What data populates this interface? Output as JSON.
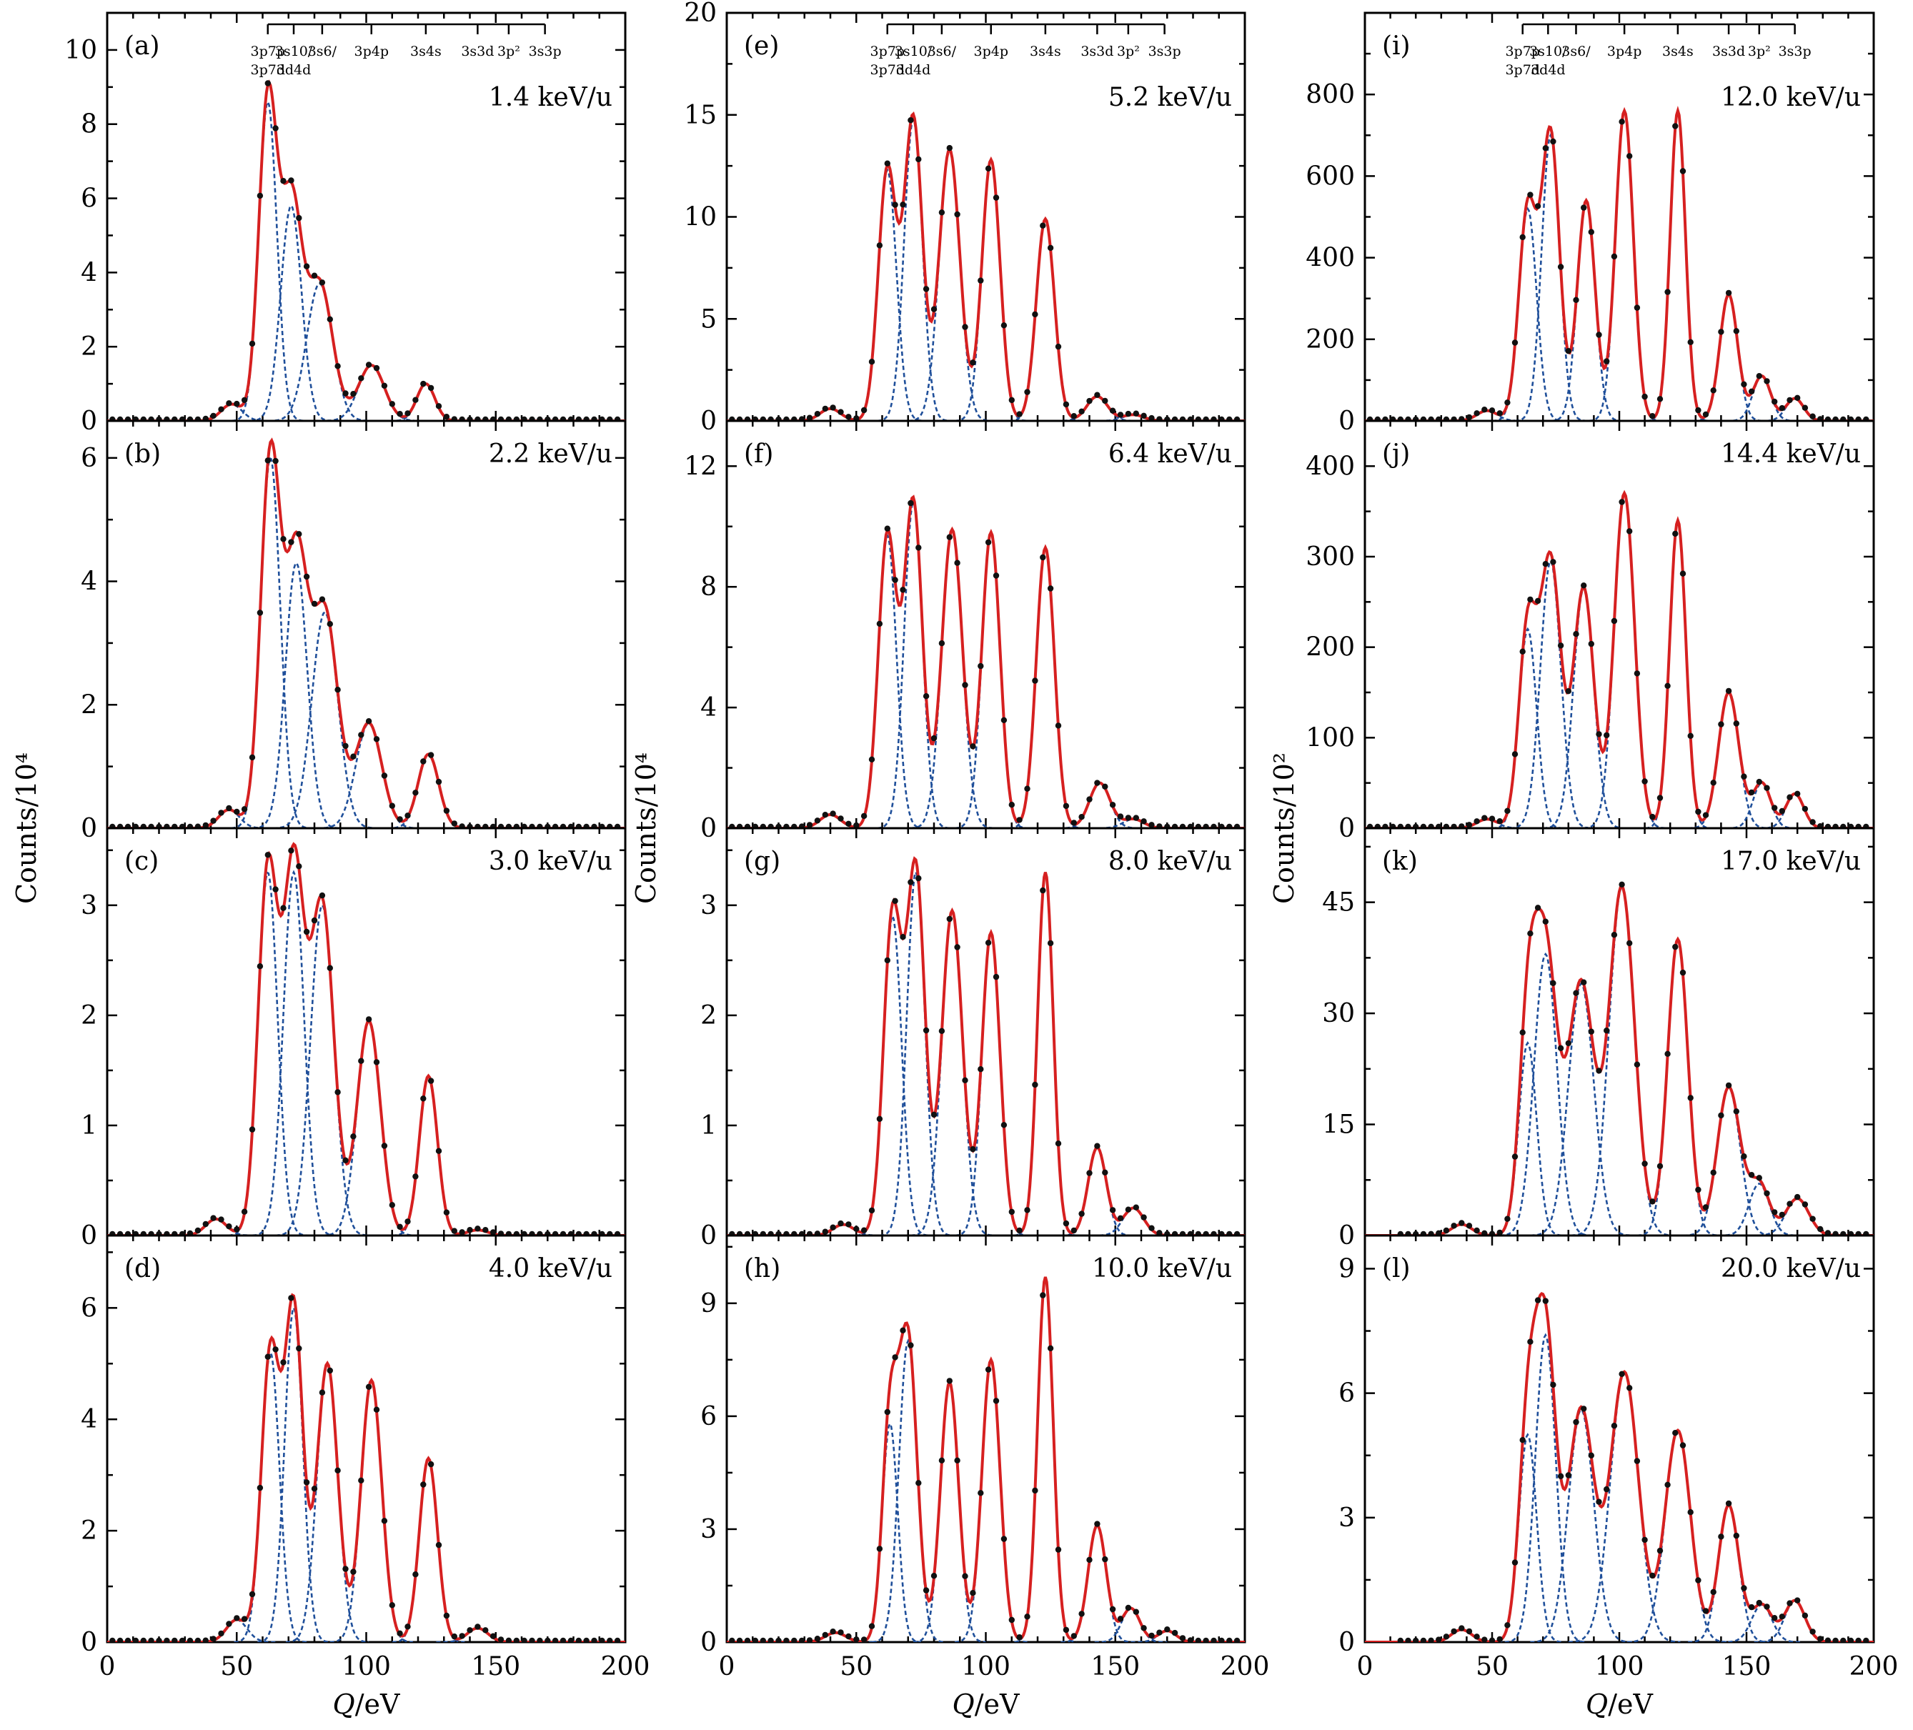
{
  "figure": {
    "x_axis_title": "Q/eV",
    "x_axis_title_parts": {
      "symbol": "Q",
      "unit": "/eV"
    },
    "y_axis_titles": [
      "Counts/10⁴",
      "Counts/10⁴",
      "Counts/10²"
    ],
    "markers": {
      "top": [
        "3p7p",
        "3s10/",
        "3s6/",
        "3p4p",
        "3s4s",
        "3s3d",
        "3p²",
        "3s3p"
      ],
      "bottom": [
        "3p7d",
        "3d4d"
      ],
      "q": [
        62,
        72,
        83,
        102,
        123,
        143,
        155,
        169
      ]
    }
  },
  "chart_data": [
    {
      "type": "line",
      "panel": "(a)",
      "annotation": "1.4 keV/u",
      "column": 0,
      "row": 0,
      "xlim": [
        0,
        200
      ],
      "ylim": [
        0,
        11
      ],
      "yticks": [
        0,
        2,
        4,
        6,
        8,
        10
      ],
      "peaks": {
        "q": [
          48,
          62,
          71,
          82,
          102,
          123
        ],
        "a": [
          0.45,
          8.6,
          5.8,
          3.7,
          1.5,
          1.0
        ],
        "w": [
          4,
          3.5,
          4,
          5,
          5,
          3.5
        ]
      }
    },
    {
      "type": "line",
      "panel": "(b)",
      "annotation": "2.2 keV/u",
      "column": 0,
      "row": 1,
      "xlim": [
        0,
        200
      ],
      "ylim": [
        0,
        6.6
      ],
      "yticks": [
        0,
        2,
        4,
        6
      ],
      "peaks": {
        "q": [
          47,
          63,
          73,
          84,
          101,
          124
        ],
        "a": [
          0.3,
          6.0,
          4.3,
          3.5,
          1.7,
          1.2
        ],
        "w": [
          4,
          3.8,
          4.2,
          5,
          5,
          4
        ]
      }
    },
    {
      "type": "line",
      "panel": "(c)",
      "annotation": "3.0 keV/u",
      "column": 0,
      "row": 2,
      "xlim": [
        0,
        200
      ],
      "ylim": [
        0,
        3.7
      ],
      "yticks": [
        0,
        1,
        2,
        3
      ],
      "peaks": {
        "q": [
          42,
          62,
          72,
          83,
          101,
          124,
          143
        ],
        "a": [
          0.15,
          3.3,
          3.3,
          3.0,
          1.95,
          1.45,
          0.05
        ],
        "w": [
          4,
          3.8,
          4,
          4.5,
          4.5,
          3.5,
          4
        ]
      }
    },
    {
      "type": "line",
      "panel": "(d)",
      "annotation": "4.0 keV/u",
      "column": 0,
      "row": 3,
      "xlim": [
        0,
        200
      ],
      "ylim": [
        0,
        7.3
      ],
      "yticks": [
        0,
        2,
        4,
        6
      ],
      "peaks": {
        "q": [
          50,
          63,
          72,
          85,
          102,
          124,
          143
        ],
        "a": [
          0.4,
          5.2,
          6.0,
          5.0,
          4.7,
          3.3,
          0.25
        ],
        "w": [
          4,
          3.5,
          3.5,
          4,
          4,
          3.5,
          4
        ]
      }
    },
    {
      "type": "line",
      "panel": "(e)",
      "annotation": "5.2 keV/u",
      "column": 1,
      "row": 0,
      "xlim": [
        0,
        200
      ],
      "ylim": [
        0,
        20
      ],
      "yticks": [
        0,
        5,
        10,
        15,
        20
      ],
      "peaks": {
        "q": [
          40,
          62,
          72,
          86,
          102,
          123,
          143,
          157
        ],
        "a": [
          0.6,
          12.3,
          14.8,
          13.3,
          12.8,
          9.9,
          1.2,
          0.3
        ],
        "w": [
          4,
          3.5,
          3.5,
          4,
          3.5,
          3.5,
          4,
          4
        ]
      }
    },
    {
      "type": "line",
      "panel": "(f)",
      "annotation": "6.4 keV/u",
      "column": 1,
      "row": 1,
      "xlim": [
        0,
        200
      ],
      "ylim": [
        0,
        13.5
      ],
      "yticks": [
        0,
        4,
        8,
        12
      ],
      "peaks": {
        "q": [
          40,
          62,
          72,
          87,
          102,
          123,
          144,
          157
        ],
        "a": [
          0.45,
          9.7,
          10.8,
          9.9,
          9.8,
          9.3,
          1.5,
          0.3
        ],
        "w": [
          4,
          3.5,
          3.5,
          4,
          3.5,
          3.5,
          4,
          4
        ]
      }
    },
    {
      "type": "line",
      "panel": "(g)",
      "annotation": "8.0 keV/u",
      "column": 1,
      "row": 2,
      "xlim": [
        0,
        200
      ],
      "ylim": [
        0,
        3.7
      ],
      "yticks": [
        0,
        1,
        2,
        3
      ],
      "peaks": {
        "q": [
          45,
          64,
          73,
          87,
          102,
          123,
          143,
          157
        ],
        "a": [
          0.1,
          2.9,
          3.3,
          2.95,
          2.75,
          3.3,
          0.8,
          0.25
        ],
        "w": [
          4,
          3.5,
          3.5,
          4,
          3.5,
          3,
          3.5,
          4
        ]
      }
    },
    {
      "type": "line",
      "panel": "(h)",
      "annotation": "10.0 keV/u",
      "column": 1,
      "row": 3,
      "xlim": [
        0,
        200
      ],
      "ylim": [
        0,
        10.8
      ],
      "yticks": [
        0,
        3,
        6,
        9
      ],
      "peaks": {
        "q": [
          42,
          63,
          70,
          86,
          102,
          123,
          143,
          156,
          170
        ],
        "a": [
          0.25,
          5.8,
          8.0,
          6.9,
          7.5,
          9.7,
          3.1,
          0.9,
          0.3
        ],
        "w": [
          4,
          3,
          3.5,
          3.5,
          3.5,
          3,
          3.5,
          3.5,
          3.5
        ]
      }
    },
    {
      "type": "line",
      "panel": "(i)",
      "annotation": "12.0 keV/u",
      "column": 2,
      "row": 0,
      "xlim": [
        0,
        200
      ],
      "ylim": [
        0,
        1000
      ],
      "yticks": [
        0,
        200,
        400,
        600,
        800
      ],
      "peaks": {
        "q": [
          48,
          64,
          73,
          87,
          102,
          123,
          143,
          156,
          169
        ],
        "a": [
          25,
          520,
          700,
          540,
          760,
          760,
          310,
          110,
          55
        ],
        "w": [
          4,
          3.5,
          3.5,
          3.5,
          3.5,
          3,
          3.5,
          3.5,
          3.5
        ]
      }
    },
    {
      "type": "line",
      "panel": "(j)",
      "annotation": "14.4 keV/u",
      "column": 2,
      "row": 1,
      "xlim": [
        0,
        200
      ],
      "ylim": [
        0,
        450
      ],
      "yticks": [
        0,
        100,
        200,
        300,
        400
      ],
      "peaks": {
        "q": [
          48,
          64,
          73,
          86,
          102,
          123,
          143,
          156,
          169
        ],
        "a": [
          10,
          220,
          295,
          265,
          370,
          340,
          150,
          50,
          38
        ],
        "w": [
          4,
          3.5,
          4,
          4,
          4,
          3.2,
          4,
          3.5,
          3.5
        ]
      }
    },
    {
      "type": "line",
      "panel": "(k)",
      "annotation": "17.0 keV/u",
      "column": 2,
      "row": 2,
      "xlim": [
        0,
        200
      ],
      "ylim": [
        0,
        55
      ],
      "yticks": [
        0,
        15,
        30,
        45
      ],
      "peaks": {
        "q": [
          38,
          64,
          71,
          85,
          101,
          123,
          143,
          155,
          170
        ],
        "a": [
          1.5,
          26,
          38,
          34,
          47,
          40,
          20,
          7,
          5
        ],
        "w": [
          4,
          3.5,
          4.5,
          5,
          5,
          4,
          4.5,
          4,
          4.5
        ]
      }
    },
    {
      "type": "line",
      "panel": "(l)",
      "annotation": "20.0 keV/u",
      "column": 2,
      "row": 3,
      "xlim": [
        0,
        200
      ],
      "ylim": [
        0,
        9.8
      ],
      "yticks": [
        0,
        3,
        6,
        9
      ],
      "peaks": {
        "q": [
          38,
          64,
          71,
          85,
          102,
          123,
          143,
          156,
          169
        ],
        "a": [
          0.3,
          5,
          7.4,
          5.6,
          6.5,
          5.1,
          3.3,
          0.9,
          1.0
        ],
        "w": [
          4,
          3.5,
          4,
          5,
          5.5,
          5,
          4,
          4,
          4
        ]
      }
    }
  ]
}
